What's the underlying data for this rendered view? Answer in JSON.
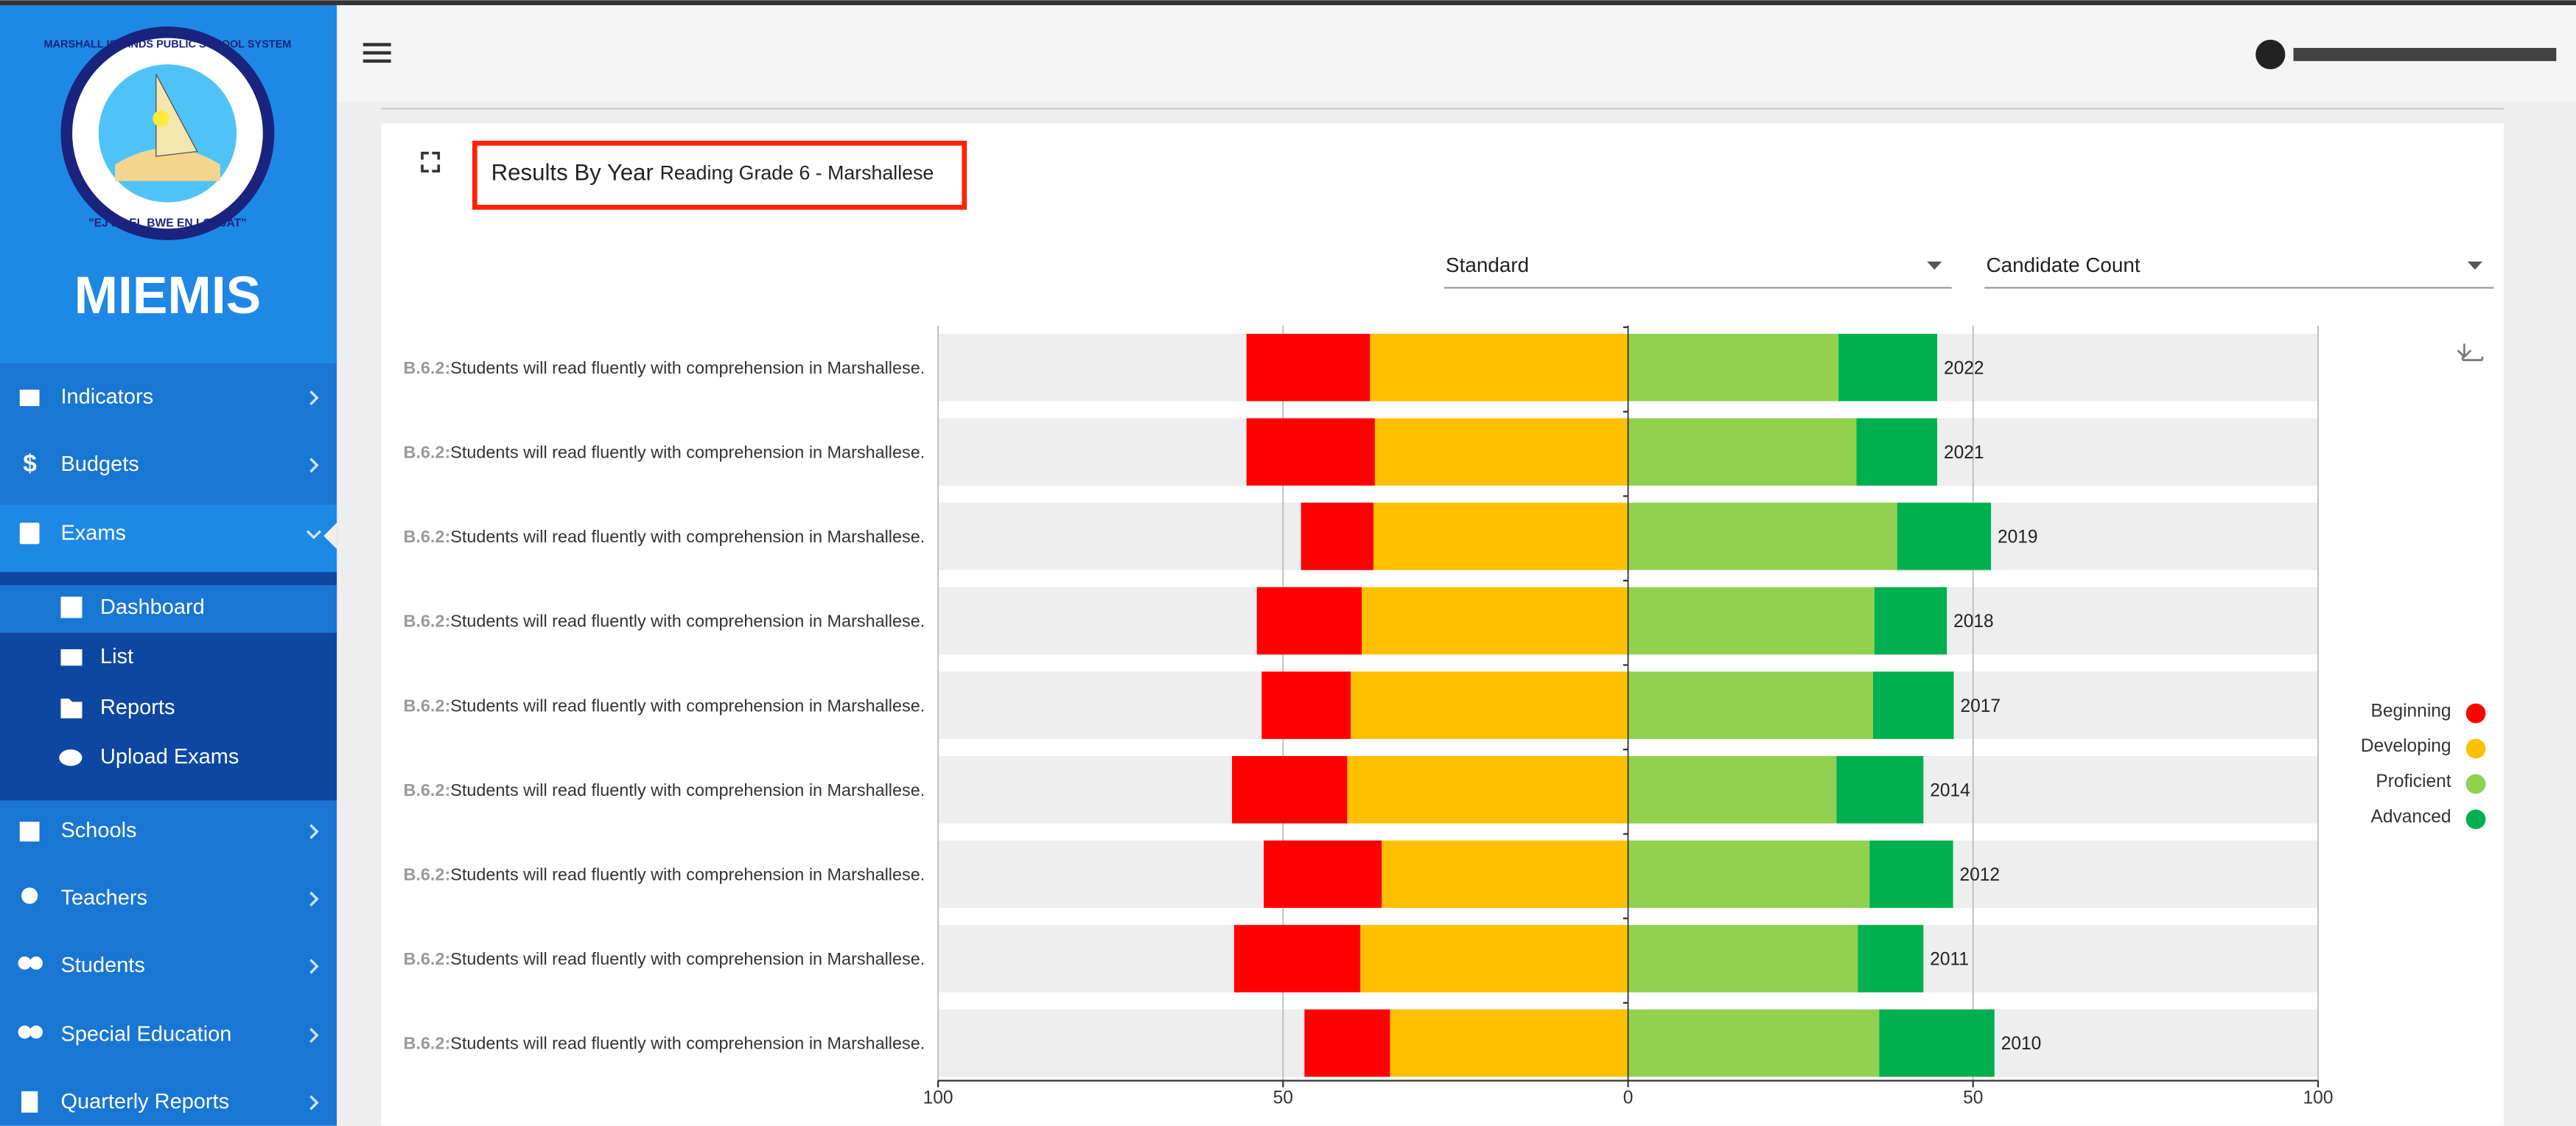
{
  "app": {
    "name": "MIEMIS",
    "logo_top": "MARSHALL ISLANDS PUBLIC SCHOOL SYSTEM",
    "logo_bottom": "\"EJ JU EL BWE EN LOṄJAT\""
  },
  "nav": [
    "Indicators",
    "Budgets",
    "Exams",
    "Dashboard",
    "List",
    "Reports",
    "Upload Exams",
    "Schools",
    "Teachers",
    "Students",
    "Special Education",
    "Quarterly Reports"
  ],
  "filters": [
    "Standard",
    "Candidate Count"
  ],
  "chart_data": {
    "type": "diverging_bar",
    "title": "Results By Year",
    "subtitle": "Reading Grade 6 - Marshallese",
    "categories": [
      "2022",
      "2021",
      "2019",
      "2018",
      "2017",
      "2014",
      "2012",
      "2011",
      "2010"
    ],
    "row_codes": [
      "B.6.2:",
      "B.6.2:",
      "B.6.2:",
      "B.6.2:",
      "B.6.2:",
      "B.6.2:",
      "B.6.2:",
      "B.6.2:",
      "B.6.2:"
    ],
    "row_texts": [
      "Students will read fluently with comprehension in Marshallese.",
      "Students will read fluently with comprehension in Marshallese.",
      "Students will read fluently with comprehension in Marshallese.",
      "Students will read fluently with comprehension in Marshallese.",
      "Students will read fluently with comprehension in Marshallese.",
      "Students will read fluently with comprehension in Marshallese.",
      "Students will read fluently with comprehension in Marshallese.",
      "Students will read fluently with comprehension in Marshallese.",
      "Students will read fluently with comprehension in Marshallese."
    ],
    "series": [
      {
        "name": "Beginning",
        "color": "#ff0000",
        "values": [
          17.9,
          18.6,
          10.5,
          15.2,
          12.9,
          16.7,
          17.1,
          18.3,
          12.4
        ]
      },
      {
        "name": "Developing",
        "color": "#ffc000",
        "values": [
          37.4,
          36.7,
          36.9,
          38.6,
          40.2,
          40.7,
          35.7,
          38.8,
          34.5
        ]
      },
      {
        "name": "Proficient",
        "color": "#92d050",
        "values": [
          30.5,
          33.1,
          39.0,
          35.7,
          35.5,
          30.2,
          35.0,
          33.3,
          36.4
        ]
      },
      {
        "name": "Advanced",
        "color": "#00b050",
        "values": [
          14.3,
          11.7,
          13.6,
          10.5,
          11.7,
          12.6,
          12.1,
          9.5,
          16.7
        ]
      }
    ],
    "xlim": [
      -100,
      100
    ],
    "xticks": [
      {
        "value": -100,
        "label": "100"
      },
      {
        "value": -50,
        "label": "50"
      },
      0,
      50,
      100
    ],
    "grid": true,
    "legend": "right"
  }
}
